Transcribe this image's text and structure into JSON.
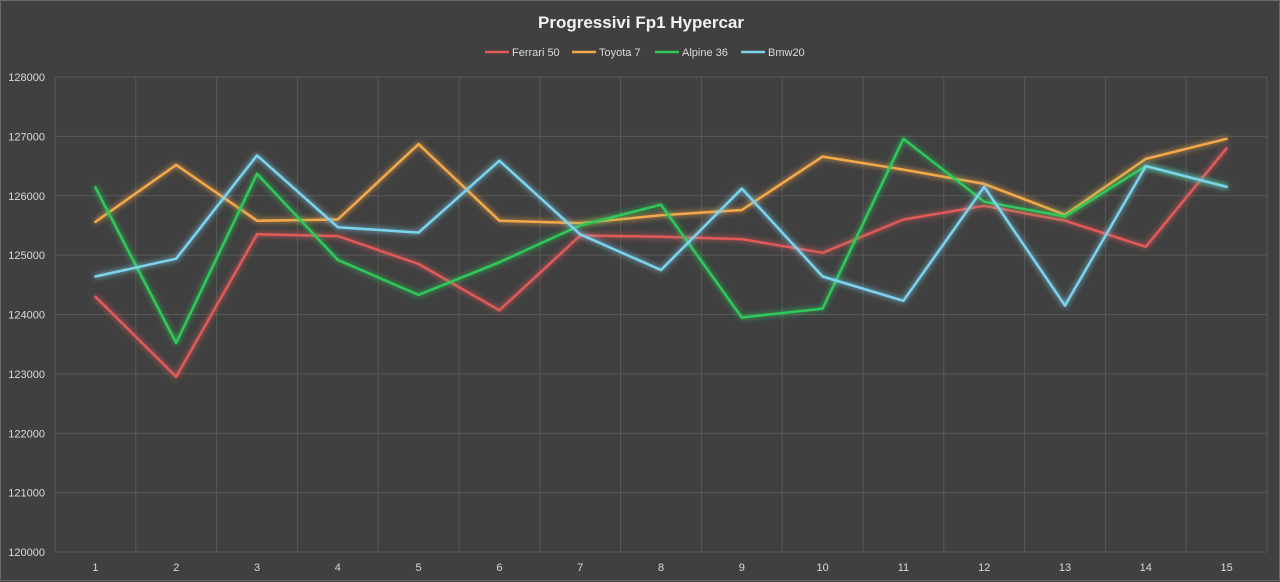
{
  "chart_data": {
    "type": "line",
    "title": "Progressivi Fp1 Hypercar",
    "xlabel": "",
    "ylabel": "",
    "categories": [
      "1",
      "2",
      "3",
      "4",
      "5",
      "6",
      "7",
      "8",
      "9",
      "10",
      "11",
      "12",
      "13",
      "14",
      "15"
    ],
    "ylim": [
      120000,
      128000
    ],
    "yticks": [
      120000,
      121000,
      122000,
      123000,
      124000,
      125000,
      126000,
      127000,
      128000
    ],
    "grid": true,
    "legend_position": "top",
    "series": [
      {
        "name": "Ferrari 50",
        "color": "#e05a5a",
        "values": [
          124300,
          122950,
          125350,
          125320,
          124850,
          124070,
          125330,
          125310,
          125270,
          125040,
          125600,
          125830,
          125580,
          125140,
          126800
        ]
      },
      {
        "name": "Toyota 7",
        "color": "#f4a84a",
        "values": [
          125560,
          126520,
          125580,
          125600,
          126870,
          125580,
          125540,
          125670,
          125760,
          126660,
          126440,
          126200,
          125680,
          126620,
          126960
        ]
      },
      {
        "name": "Alpine 36",
        "color": "#2ec95a",
        "values": [
          126140,
          123520,
          126370,
          124920,
          124330,
          124880,
          125500,
          125850,
          123950,
          124100,
          126960,
          125900,
          125650,
          126500,
          126150
        ]
      },
      {
        "name": "Bmw20",
        "color": "#7cd3ee",
        "values": [
          124640,
          124940,
          126680,
          125470,
          125380,
          126590,
          125350,
          124750,
          126120,
          124640,
          124230,
          126150,
          124150,
          126500,
          126150
        ]
      }
    ]
  }
}
